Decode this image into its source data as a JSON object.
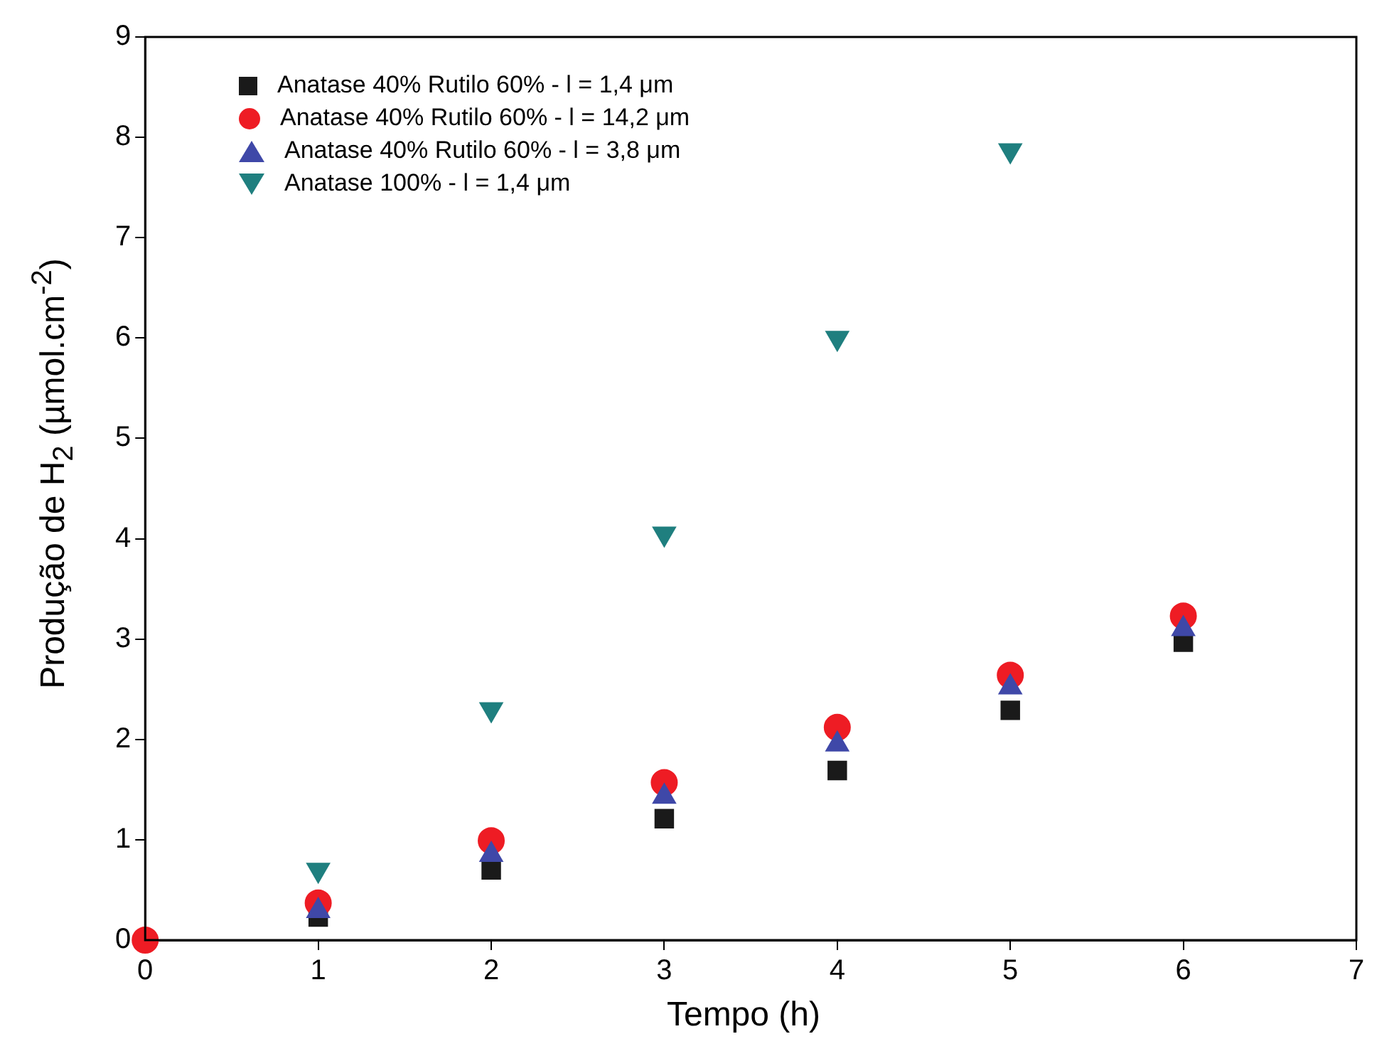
{
  "chart_data": {
    "type": "scatter",
    "xlabel": "Tempo (h)",
    "ylabel": "Produção de H$_{2}$ (µmol.cm$^{-2}$)",
    "x": [
      0,
      1,
      2,
      3,
      4,
      5,
      6
    ],
    "xlim": [
      0,
      7
    ],
    "xticks": [
      0,
      1,
      2,
      3,
      4,
      5,
      6,
      7
    ],
    "ylim": [
      0,
      9
    ],
    "yticks": [
      0,
      1,
      2,
      3,
      4,
      5,
      6,
      7,
      8,
      9
    ],
    "grid": false,
    "legend": "top left",
    "series": [
      {
        "name": "Anatase 40% Rutilo 60%  -  l = 1,4 μm",
        "color": "#1a1a1a",
        "marker": "square",
        "values": [
          null,
          0.23,
          0.7,
          1.21,
          1.69,
          2.29,
          2.97
        ]
      },
      {
        "name": "Anatase 40% Rutilo 60%  -  l = 14,2 μm",
        "color": "#ee1c24",
        "marker": "circle",
        "values": [
          0,
          0.37,
          0.99,
          1.57,
          2.12,
          2.64,
          3.23
        ]
      },
      {
        "name": "Anatase 40% Rutilo 60%  -  l = 3,8 μm",
        "color": "#3f48a8",
        "marker": "triangle",
        "values": [
          null,
          0.29,
          0.85,
          1.43,
          1.95,
          2.52,
          3.1
        ]
      },
      {
        "name": "Anatase 100%  -  l = 1,4 μm",
        "color": "#1f7f7f",
        "marker": "triangle-down",
        "values": [
          null,
          0.7,
          2.3,
          4.05,
          6.0,
          7.87,
          null
        ]
      }
    ]
  }
}
